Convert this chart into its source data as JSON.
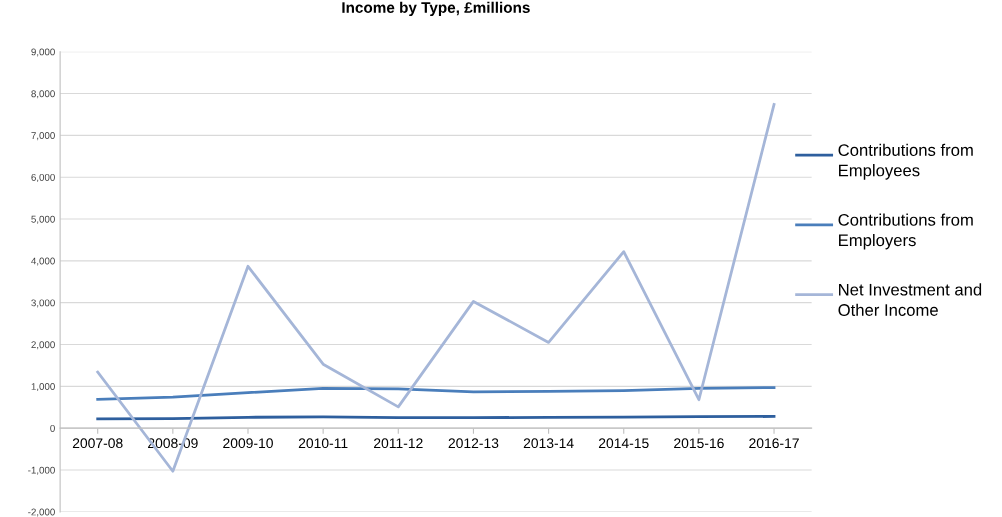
{
  "chart_data": {
    "type": "line",
    "title": "Income by Type, £millions",
    "categories": [
      "2007-08",
      "2008-09",
      "2009-10",
      "2010-11",
      "2011-12",
      "2012-13",
      "2013-14",
      "2014-15",
      "2015-16",
      "2016-17"
    ],
    "series": [
      {
        "name": "Contributions from Employees",
        "color": "#2e5f9e",
        "values": [
          220,
          230,
          260,
          270,
          250,
          250,
          260,
          265,
          275,
          280
        ]
      },
      {
        "name": "Contributions from Employers",
        "color": "#4a7ebb",
        "values": [
          690,
          740,
          850,
          950,
          940,
          870,
          880,
          900,
          950,
          970
        ]
      },
      {
        "name": "Net Investment and Other Income",
        "color": "#a5b6d8",
        "values": [
          1340,
          -1030,
          3870,
          1530,
          510,
          3030,
          2050,
          4220,
          680,
          7740
        ]
      }
    ],
    "ylim": [
      -2000,
      9000
    ],
    "yticks": [
      {
        "value": -2000,
        "label": "-2,000"
      },
      {
        "value": -1000,
        "label": "-1,000"
      },
      0,
      {
        "value": 1000,
        "label": "1,000"
      },
      {
        "value": 2000,
        "label": "2,000"
      },
      {
        "value": 3000,
        "label": "3,000"
      },
      {
        "value": 4000,
        "label": "4,000"
      },
      {
        "value": 5000,
        "label": "5,000"
      },
      {
        "value": 6000,
        "label": "6,000"
      },
      {
        "value": 7000,
        "label": "7,000"
      },
      {
        "value": 8000,
        "label": "8,000"
      },
      {
        "value": 9000,
        "label": "9,000"
      }
    ],
    "grid": "y",
    "legend": "right",
    "marker": "none",
    "line_style": "solid"
  }
}
